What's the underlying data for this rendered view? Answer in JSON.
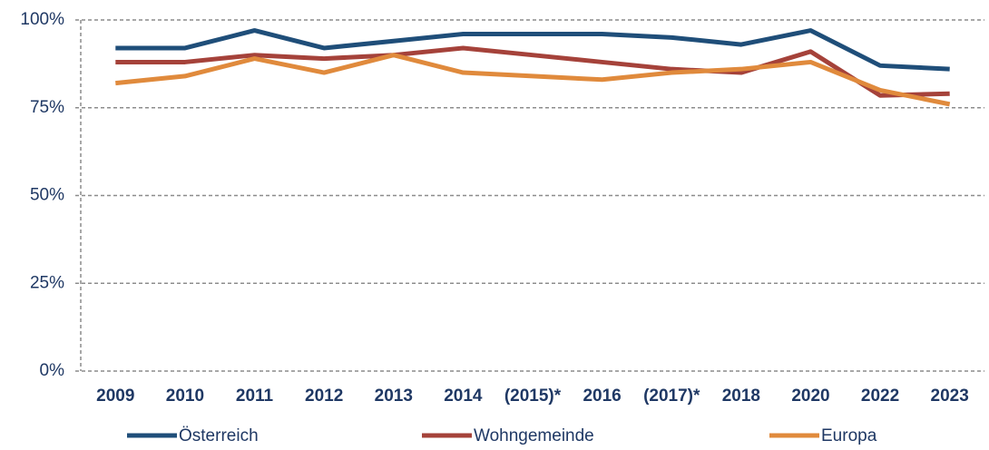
{
  "chart_data": {
    "type": "line",
    "categories": [
      "2009",
      "2010",
      "2011",
      "2012",
      "2013",
      "2014",
      "(2015)*",
      "2016",
      "(2017)*",
      "2018",
      "2020",
      "2022",
      "2023"
    ],
    "series": [
      {
        "name": "Österreich",
        "color": "#1f4e79",
        "values": [
          92,
          92,
          97,
          92,
          94,
          96,
          96,
          96,
          95,
          93,
          97,
          87,
          86
        ]
      },
      {
        "name": "Wohngemeinde",
        "color": "#a5423a",
        "values": [
          88,
          88,
          90,
          89,
          90,
          92,
          90,
          88,
          86,
          85,
          91,
          78.5,
          79
        ]
      },
      {
        "name": "Europa",
        "color": "#e08a3c",
        "values": [
          82,
          84,
          89,
          85,
          90,
          85,
          84,
          83,
          85,
          86,
          88,
          80,
          76
        ]
      }
    ],
    "ylim": [
      0,
      100
    ],
    "yticks": [
      {
        "value": 0,
        "label": "0%"
      },
      {
        "value": 25,
        "label": "25%"
      },
      {
        "value": 50,
        "label": "50%"
      },
      {
        "value": 75,
        "label": "75%"
      },
      {
        "value": 100,
        "label": "100%"
      }
    ],
    "grid": true
  }
}
